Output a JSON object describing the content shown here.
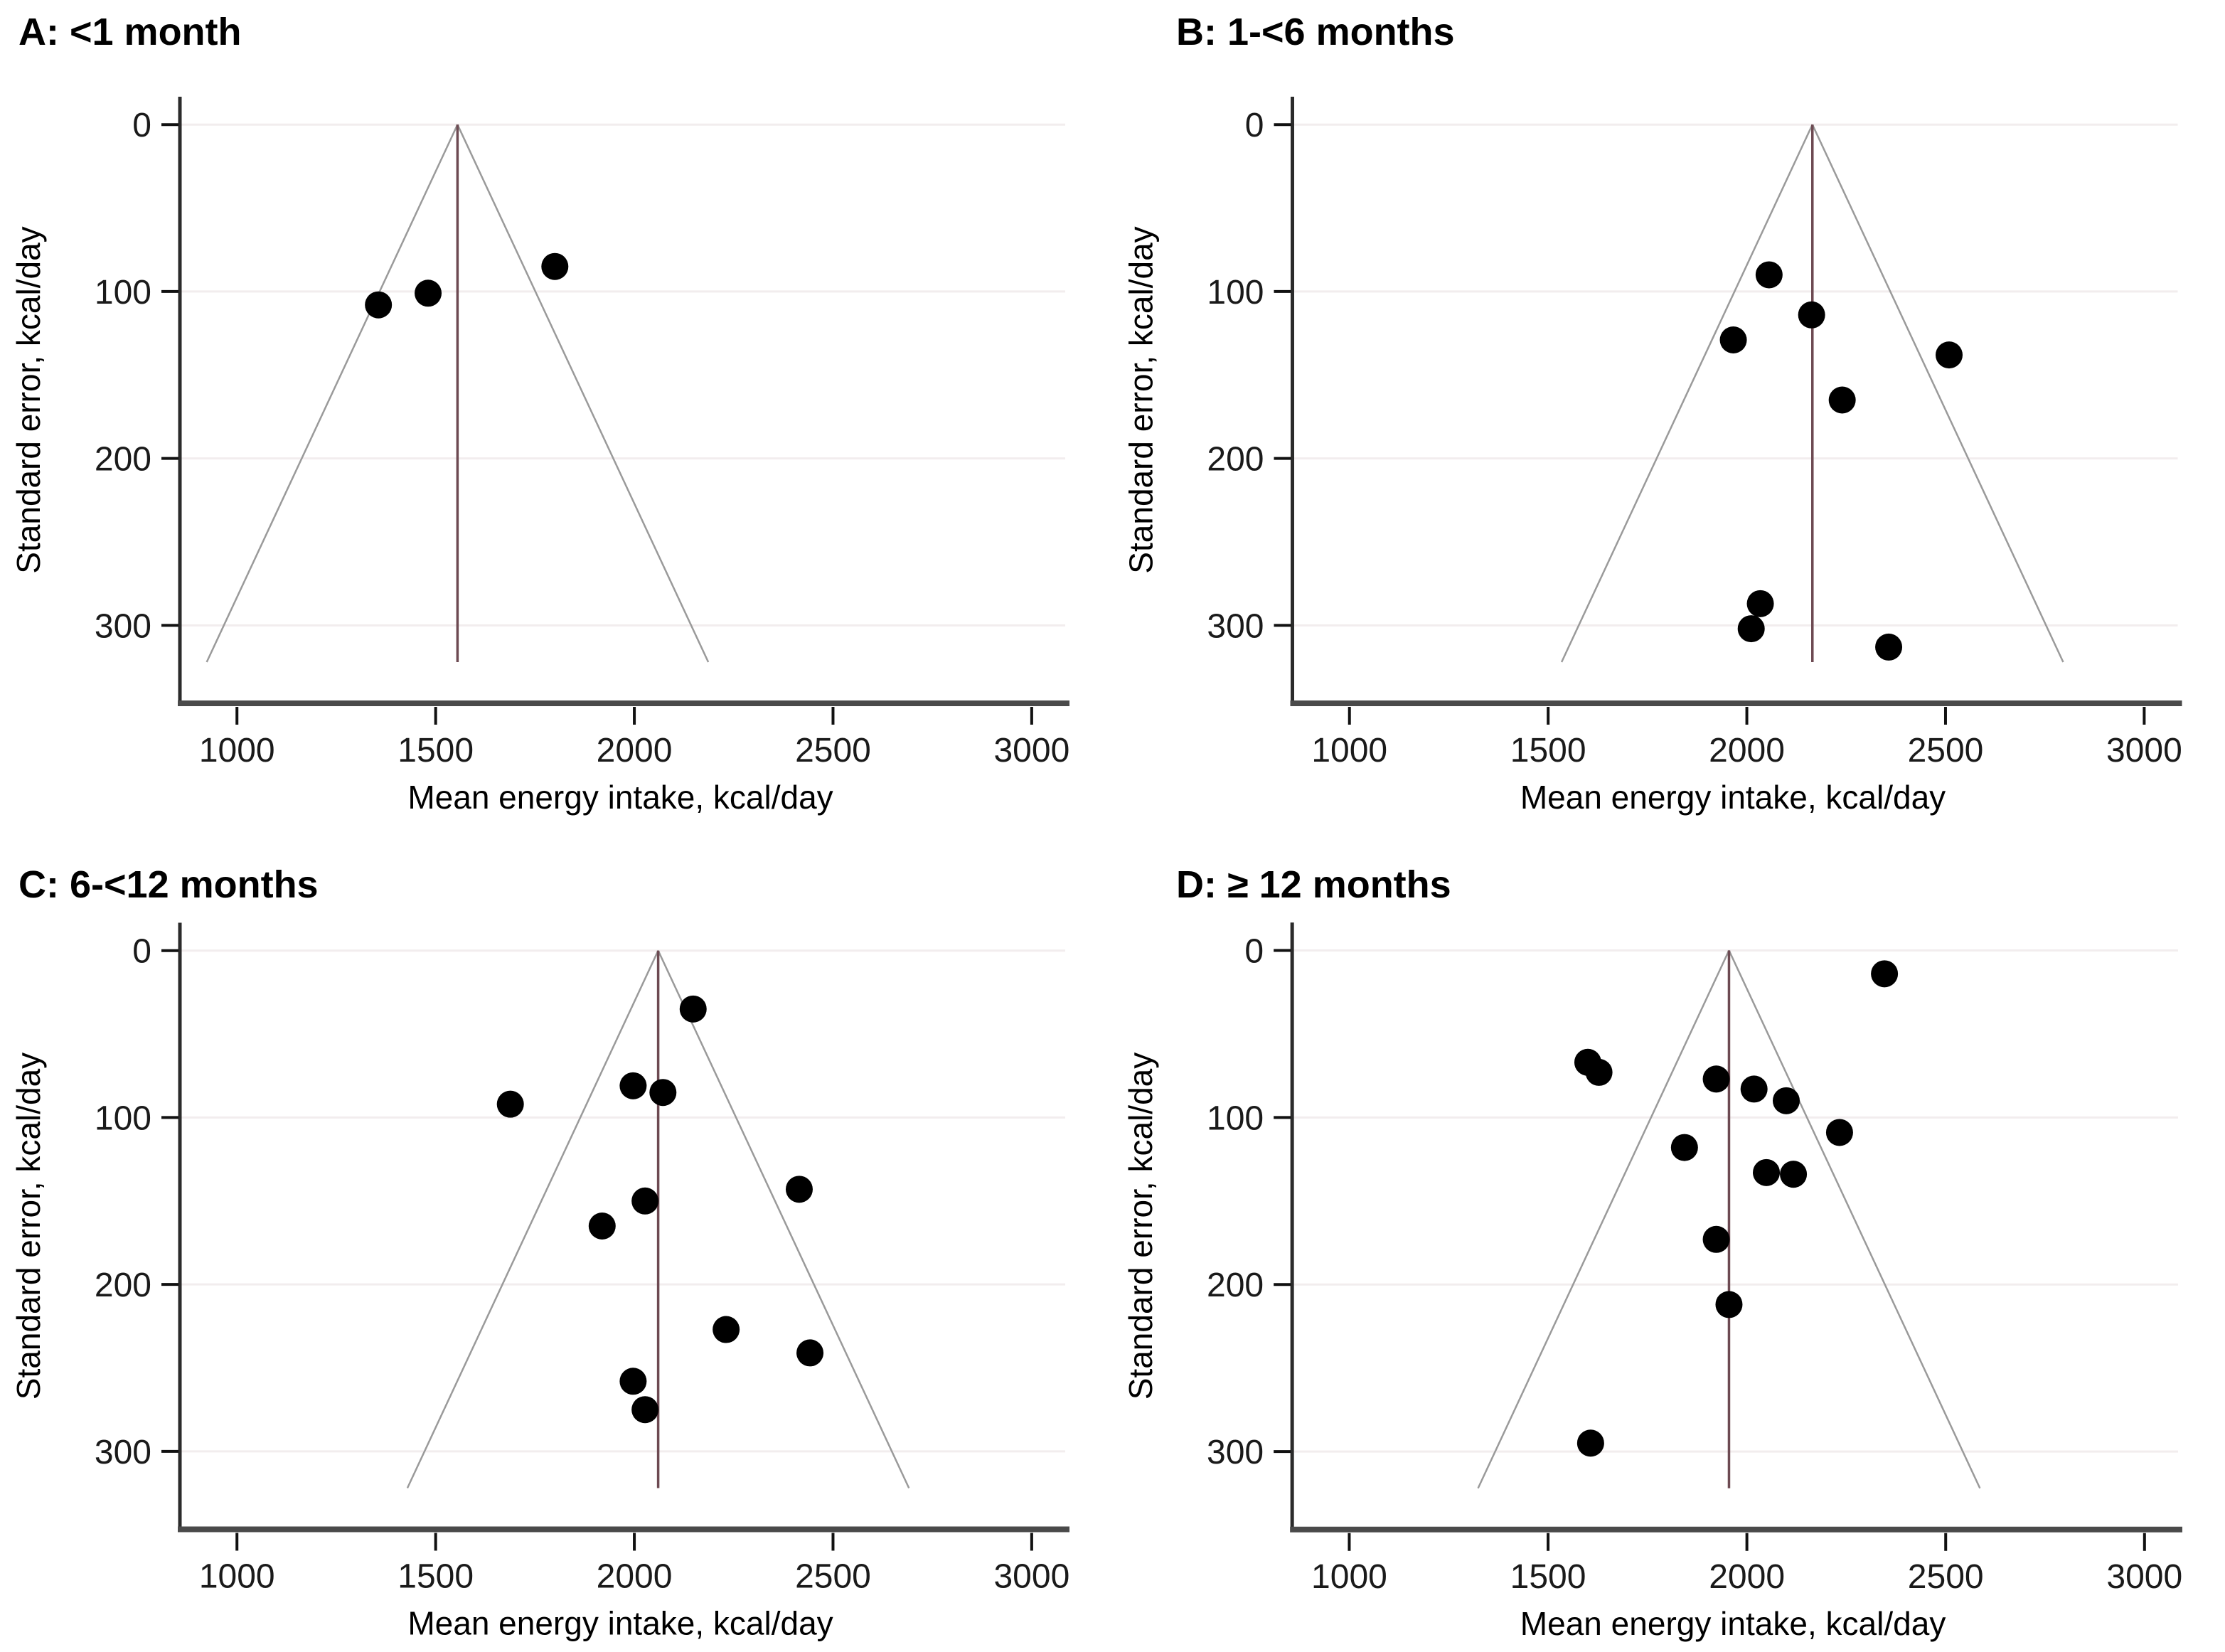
{
  "page": {
    "background": "#ffffff",
    "description": "Four funnel plots of mean energy intake versus standard error by age group"
  },
  "chart_data": {
    "type": "scatter",
    "variant": "funnel-plot-grid",
    "xlabel": "Mean energy intake, kcal/day",
    "ylabel": "Standard error, kcal/day",
    "x_ticks": [
      1000,
      1500,
      2000,
      2500,
      3000
    ],
    "y_ticks": [
      0,
      100,
      200,
      300
    ],
    "xlim": [
      860,
      3070
    ],
    "ylim": [
      -15,
      345
    ],
    "y_axis_inverted": true,
    "grid": "horizontal-only",
    "legend": "none",
    "funnel_ci_multiplier": 1.96,
    "funnel_max_se": 322,
    "colors": {
      "dot": "#000000",
      "pooled_line": "#6d4a52",
      "funnel_line": "#9a9a9a",
      "gridline": "#f2edee",
      "axis": "#4a4a4a",
      "tick": "#1a1a1a",
      "text": "#000000"
    },
    "panels": [
      {
        "id": "A",
        "title": "A: <1 month",
        "pooled_mean": 1555,
        "points": [
          {
            "x": 1356,
            "se": 108
          },
          {
            "x": 1481,
            "se": 101
          },
          {
            "x": 1800,
            "se": 85
          }
        ]
      },
      {
        "id": "B",
        "title": "B: 1-<6 months",
        "pooled_mean": 2165,
        "points": [
          {
            "x": 2056,
            "se": 90
          },
          {
            "x": 2163,
            "se": 114
          },
          {
            "x": 1966,
            "se": 129
          },
          {
            "x": 2509,
            "se": 138
          },
          {
            "x": 2240,
            "se": 165
          },
          {
            "x": 2034,
            "se": 287
          },
          {
            "x": 2011,
            "se": 302
          },
          {
            "x": 2357,
            "se": 313
          }
        ]
      },
      {
        "id": "C",
        "title": "C: 6-<12 months",
        "pooled_mean": 2060,
        "points": [
          {
            "x": 2148,
            "se": 35
          },
          {
            "x": 1997,
            "se": 81
          },
          {
            "x": 2072,
            "se": 85
          },
          {
            "x": 1688,
            "se": 92
          },
          {
            "x": 2415,
            "se": 143
          },
          {
            "x": 2027,
            "se": 150
          },
          {
            "x": 1919,
            "se": 165
          },
          {
            "x": 2231,
            "se": 227
          },
          {
            "x": 2442,
            "se": 241
          },
          {
            "x": 1997,
            "se": 258
          },
          {
            "x": 2027,
            "se": 275
          }
        ]
      },
      {
        "id": "D",
        "title": "D: ≥ 12 months",
        "pooled_mean": 1955,
        "points": [
          {
            "x": 2346,
            "se": 14
          },
          {
            "x": 1600,
            "se": 67
          },
          {
            "x": 1628,
            "se": 73
          },
          {
            "x": 1923,
            "se": 77
          },
          {
            "x": 2018,
            "se": 83
          },
          {
            "x": 2099,
            "se": 90
          },
          {
            "x": 2233,
            "se": 109
          },
          {
            "x": 1843,
            "se": 118
          },
          {
            "x": 2049,
            "se": 133
          },
          {
            "x": 2117,
            "se": 134
          },
          {
            "x": 1923,
            "se": 173
          },
          {
            "x": 1955,
            "se": 212
          },
          {
            "x": 1607,
            "se": 295
          }
        ]
      }
    ]
  }
}
